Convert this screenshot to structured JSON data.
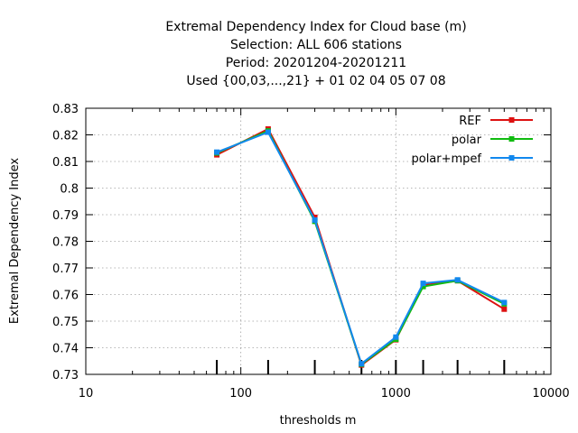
{
  "chart_data": {
    "type": "line",
    "title_lines": [
      "Extremal Dependency Index  for Cloud base (m)",
      "Selection: ALL    606 stations",
      "Period: 20201204-20201211",
      "Used {00,03,...,21} + 01 02 04 05 07 08"
    ],
    "xlabel": "thresholds m",
    "ylabel": "Extremal Dependency Index",
    "x_scale": "log",
    "xlim": [
      10,
      10000
    ],
    "ylim": [
      0.73,
      0.83
    ],
    "x_ticks": [
      10,
      100,
      1000,
      10000
    ],
    "x_tick_labels": [
      "10",
      "100",
      "1000",
      "10000"
    ],
    "y_ticks": [
      0.73,
      0.74,
      0.75,
      0.76,
      0.77,
      0.78,
      0.79,
      0.8,
      0.81,
      0.82,
      0.83
    ],
    "y_tick_labels": [
      "0.73",
      "0.74",
      "0.75",
      "0.76",
      "0.77",
      "0.78",
      "0.79",
      "0.8",
      "0.81",
      "0.82",
      "0.83"
    ],
    "grid": true,
    "legend_position": "top-right",
    "threshold_markers": [
      70,
      150,
      300,
      600,
      1000,
      1500,
      2500,
      5000
    ],
    "x": [
      70,
      150,
      300,
      600,
      1000,
      1500,
      2500,
      5000
    ],
    "series": [
      {
        "name": "REF",
        "color": "#dd1111",
        "values": [
          0.8125,
          0.8222,
          0.789,
          0.7335,
          0.743,
          0.7635,
          0.7652,
          0.7545
        ]
      },
      {
        "name": "polar",
        "color": "#11bb11",
        "values": [
          0.8132,
          0.8215,
          0.7875,
          0.7338,
          0.7432,
          0.763,
          0.7652,
          0.7565
        ]
      },
      {
        "name": "polar+mpef",
        "color": "#1188ee",
        "values": [
          0.8135,
          0.821,
          0.788,
          0.734,
          0.744,
          0.7642,
          0.7655,
          0.757
        ]
      }
    ]
  }
}
